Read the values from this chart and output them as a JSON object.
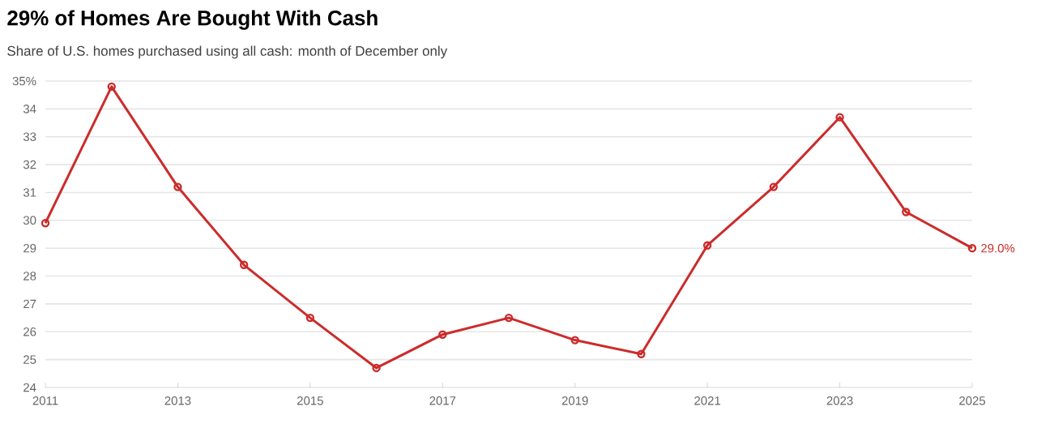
{
  "chart_data": {
    "type": "line",
    "title": "29% of Homes Are Bought With Cash",
    "subtitle": "Share of U.S. homes purchased using all cash: month of December only",
    "x": [
      2011,
      2012,
      2013,
      2014,
      2015,
      2016,
      2017,
      2018,
      2019,
      2020,
      2021,
      2022,
      2023,
      2024,
      2025
    ],
    "series": [
      {
        "color": "#cc2b2b",
        "values": [
          29.9,
          34.8,
          31.2,
          28.4,
          26.5,
          24.7,
          25.9,
          26.5,
          25.7,
          25.2,
          29.1,
          31.2,
          33.7,
          30.3,
          29.0
        ],
        "value_labels": [
          null,
          null,
          null,
          null,
          null,
          null,
          null,
          null,
          null,
          null,
          null,
          null,
          null,
          null,
          "29.0%"
        ]
      }
    ],
    "xlim": [
      2011,
      2025
    ],
    "xticks": [
      2011,
      2013,
      2015,
      2017,
      2019,
      2021,
      2023,
      2025
    ],
    "ylim": [
      24,
      35
    ],
    "yticks": [
      24,
      25,
      26,
      27,
      28,
      29,
      30,
      31,
      32,
      33,
      34,
      {
        "value": 35,
        "label": "35%"
      }
    ],
    "grid": "y",
    "marker": "circle",
    "line_style": "solid"
  }
}
